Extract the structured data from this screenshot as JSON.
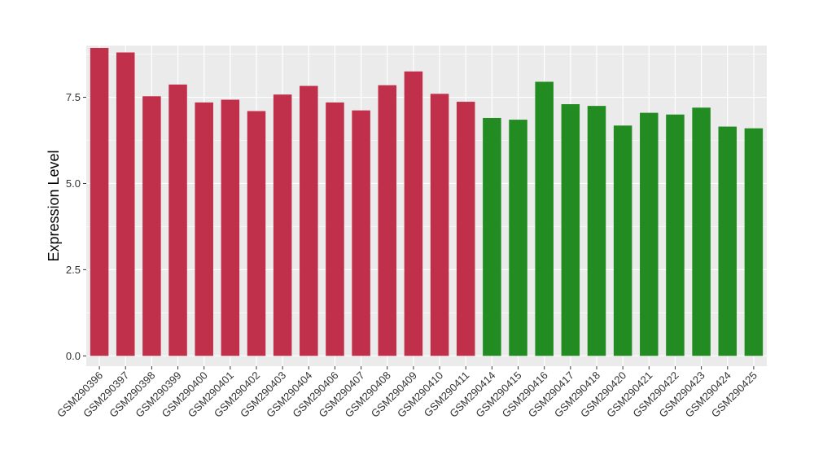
{
  "chart_data": {
    "type": "bar",
    "title": "",
    "xlabel": "",
    "ylabel": "Expression Level",
    "ylim": [
      -0.3,
      9.0
    ],
    "yticks": [
      0.0,
      2.5,
      5.0,
      7.5
    ],
    "ytick_labels": [
      "0.0",
      "2.5",
      "5.0",
      "7.5"
    ],
    "grid": true,
    "legend": "none",
    "categories": [
      "GSM290396",
      "GSM290397",
      "GSM290398",
      "GSM290399",
      "GSM290400",
      "GSM290401",
      "GSM290402",
      "GSM290403",
      "GSM290404",
      "GSM290406",
      "GSM290407",
      "GSM290408",
      "GSM290409",
      "GSM290410",
      "GSM290411",
      "GSM290414",
      "GSM290415",
      "GSM290416",
      "GSM290417",
      "GSM290418",
      "GSM290420",
      "GSM290421",
      "GSM290422",
      "GSM290423",
      "GSM290424",
      "GSM290425"
    ],
    "values": [
      8.93,
      8.8,
      7.53,
      7.87,
      7.35,
      7.43,
      7.1,
      7.58,
      7.83,
      7.35,
      7.12,
      7.85,
      8.25,
      7.6,
      7.37,
      6.9,
      6.85,
      7.95,
      7.3,
      7.25,
      6.68,
      7.05,
      7.0,
      7.2,
      6.65,
      6.6
    ],
    "bar_colors": [
      "#c0304a",
      "#c0304a",
      "#c0304a",
      "#c0304a",
      "#c0304a",
      "#c0304a",
      "#c0304a",
      "#c0304a",
      "#c0304a",
      "#c0304a",
      "#c0304a",
      "#c0304a",
      "#c0304a",
      "#c0304a",
      "#c0304a",
      "#228b22",
      "#228b22",
      "#228b22",
      "#228b22",
      "#228b22",
      "#228b22",
      "#228b22",
      "#228b22",
      "#228b22",
      "#228b22",
      "#228b22"
    ],
    "panel_background": "#ebebeb",
    "grid_color": "#ffffff"
  }
}
